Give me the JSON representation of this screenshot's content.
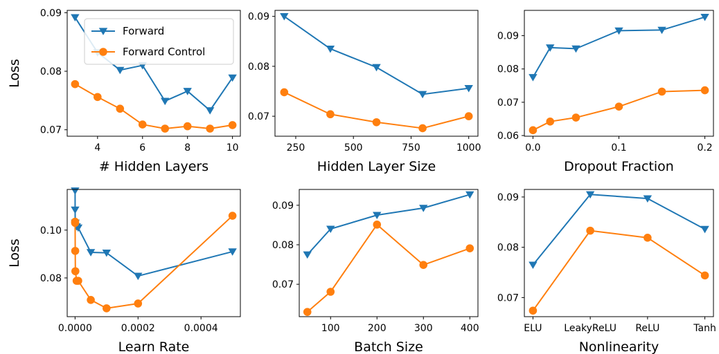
{
  "legend": {
    "entries": [
      {
        "label": "Forward",
        "color": "#1f77b4",
        "marker": "triangle-down"
      },
      {
        "label": "Forward Control",
        "color": "#ff7f0e",
        "marker": "circle"
      }
    ],
    "placement": "upper-right of first panel"
  },
  "chart_data": [
    {
      "type": "line",
      "xlabel": "# Hidden Layers",
      "ylabel": "Loss",
      "xlim": [
        2.65,
        10.35
      ],
      "ylim": [
        0.0689,
        0.0904
      ],
      "xticks": [
        4,
        6,
        8,
        10
      ],
      "xtick_labels": [
        "4",
        "6",
        "8",
        "10"
      ],
      "yticks": [
        0.07,
        0.08,
        0.09
      ],
      "ytick_labels": [
        "0.07",
        "0.08",
        "0.09"
      ],
      "x": [
        3,
        4,
        5,
        6,
        7,
        8,
        9,
        10
      ],
      "series": [
        {
          "name": "Forward",
          "values": [
            0.0892,
            0.0832,
            0.0802,
            0.081,
            0.0749,
            0.0766,
            0.0733,
            0.0789
          ]
        },
        {
          "name": "Forward Control",
          "values": [
            0.0778,
            0.0756,
            0.0736,
            0.0709,
            0.0702,
            0.0706,
            0.0702,
            0.0708
          ]
        }
      ]
    },
    {
      "type": "line",
      "xlabel": "Hidden Layer Size",
      "ylabel": "",
      "xlim": [
        160,
        1040
      ],
      "ylim": [
        0.066,
        0.0912
      ],
      "xticks": [
        250,
        500,
        750,
        1000
      ],
      "xtick_labels": [
        "250",
        "500",
        "750",
        "1000"
      ],
      "yticks": [
        0.07,
        0.08,
        0.09
      ],
      "ytick_labels": [
        "0.07",
        "0.08",
        "0.09"
      ],
      "x": [
        200,
        400,
        600,
        800,
        1000
      ],
      "series": [
        {
          "name": "Forward",
          "values": [
            0.09,
            0.0835,
            0.0798,
            0.0744,
            0.0756
          ]
        },
        {
          "name": "Forward Control",
          "values": [
            0.0748,
            0.0704,
            0.0688,
            0.0676,
            0.07
          ]
        }
      ]
    },
    {
      "type": "line",
      "xlabel": "Dropout Fraction",
      "ylabel": "",
      "xlim": [
        -0.01,
        0.21
      ],
      "ylim": [
        0.0598,
        0.0976
      ],
      "xticks": [
        0.0,
        0.1,
        0.2
      ],
      "xtick_labels": [
        "0.0",
        "0.1",
        "0.2"
      ],
      "yticks": [
        0.06,
        0.07,
        0.08,
        0.09
      ],
      "ytick_labels": [
        "0.06",
        "0.07",
        "0.08",
        "0.09"
      ],
      "x": [
        0.0,
        0.02,
        0.05,
        0.1,
        0.15,
        0.2
      ],
      "series": [
        {
          "name": "Forward",
          "values": [
            0.0775,
            0.0864,
            0.0861,
            0.0915,
            0.0917,
            0.0956
          ]
        },
        {
          "name": "Forward Control",
          "values": [
            0.0616,
            0.0642,
            0.0654,
            0.0687,
            0.0732,
            0.0736
          ]
        }
      ]
    },
    {
      "type": "line",
      "xlabel": "Learn Rate",
      "ylabel": "Loss",
      "xlim": [
        -2.5e-05,
        0.000525
      ],
      "ylim": [
        0.0638,
        0.117
      ],
      "xticks": [
        0.0,
        0.0002,
        0.0004
      ],
      "xtick_labels": [
        "0.0000",
        "0.0002",
        "0.0004"
      ],
      "yticks": [
        0.08,
        0.1
      ],
      "ytick_labels": [
        "0.08",
        "0.10"
      ],
      "x": [
        1e-07,
        2e-07,
        5e-07,
        1e-06,
        5e-06,
        1e-05,
        5e-05,
        0.0001,
        0.0002,
        0.0005
      ],
      "series": [
        {
          "name": "Forward",
          "values": [
            0.1165,
            0.1085,
            0.103,
            0.103,
            0.1015,
            0.101,
            0.0907,
            0.0905,
            0.0808,
            0.091
          ]
        },
        {
          "name": "Forward Control",
          "values": [
            0.1035,
            0.103,
            0.0913,
            0.0828,
            0.0788,
            0.0788,
            0.0708,
            0.0673,
            0.0693,
            0.106
          ]
        }
      ]
    },
    {
      "type": "line",
      "xlabel": "Batch Size",
      "ylabel": "",
      "xlim": [
        32.5,
        417.5
      ],
      "ylim": [
        0.0618,
        0.094
      ],
      "xticks": [
        100,
        200,
        300,
        400
      ],
      "xtick_labels": [
        "100",
        "200",
        "300",
        "400"
      ],
      "yticks": [
        0.07,
        0.08,
        0.09
      ],
      "ytick_labels": [
        "0.07",
        "0.08",
        "0.09"
      ],
      "x": [
        50,
        100,
        200,
        300,
        400
      ],
      "series": [
        {
          "name": "Forward",
          "values": [
            0.0775,
            0.084,
            0.0875,
            0.0893,
            0.0927
          ]
        },
        {
          "name": "Forward Control",
          "values": [
            0.063,
            0.0681,
            0.0851,
            0.0749,
            0.0791
          ]
        }
      ]
    },
    {
      "type": "line",
      "xlabel": "Nonlinearity",
      "ylabel": "",
      "xlim": [
        -0.15,
        3.15
      ],
      "ylim": [
        0.0662,
        0.0915
      ],
      "xticks": [
        0,
        1,
        2,
        3
      ],
      "xtick_labels": [
        "ELU",
        "LeakyReLU",
        "ReLU",
        "Tanh"
      ],
      "yticks": [
        0.07,
        0.08,
        0.09
      ],
      "ytick_labels": [
        "0.07",
        "0.08",
        "0.09"
      ],
      "x": [
        0,
        1,
        2,
        3
      ],
      "series": [
        {
          "name": "Forward",
          "values": [
            0.0765,
            0.0905,
            0.0897,
            0.0836
          ]
        },
        {
          "name": "Forward Control",
          "values": [
            0.0674,
            0.0833,
            0.0819,
            0.0744
          ]
        }
      ]
    }
  ]
}
